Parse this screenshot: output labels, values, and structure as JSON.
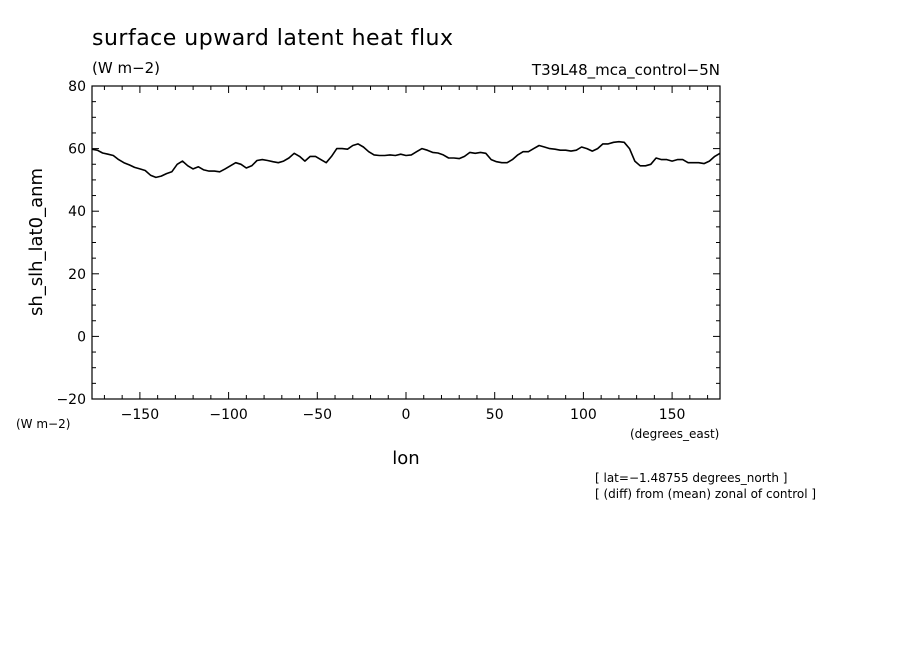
{
  "header": {
    "title": "surface upward latent heat flux",
    "units": "(W m−2)",
    "run_label": "T39L48_mca_control−5N"
  },
  "footer_notes": [
    "[ lat=−1.48755 degrees_north ]",
    "[ (diff) from (mean) zonal of control ]"
  ],
  "chart_data": {
    "type": "line",
    "title": "surface upward latent heat flux",
    "xlabel": "lon",
    "xunits": "(degrees_east)",
    "ylabel": "sh_slh_lat0_anm",
    "yunits": "(W m−2)",
    "xlim": [
      -177,
      177
    ],
    "ylim": [
      -20,
      80
    ],
    "xticks": [
      -150,
      -100,
      -50,
      0,
      50,
      100,
      150
    ],
    "xtick_labels": [
      "−150",
      "−100",
      "−50",
      "0",
      "50",
      "100",
      "150"
    ],
    "yticks": [
      -20,
      0,
      20,
      40,
      60,
      80
    ],
    "ytick_labels": [
      "−20",
      "0",
      "20",
      "40",
      "60",
      "80"
    ],
    "grid": false,
    "series": [
      {
        "color": "#000000",
        "x": [
          -177,
          -174,
          -171,
          -168,
          -165,
          -162,
          -159,
          -156,
          -153,
          -150,
          -147,
          -144,
          -141,
          -138,
          -135,
          -132,
          -129,
          -126,
          -123,
          -120,
          -117,
          -114,
          -111,
          -108,
          -105,
          -102,
          -99,
          -96,
          -93,
          -90,
          -87,
          -84,
          -81,
          -78,
          -75,
          -72,
          -69,
          -66,
          -63,
          -60,
          -57,
          -54,
          -51,
          -48,
          -45,
          -42,
          -39,
          -36,
          -33,
          -30,
          -27,
          -24,
          -21,
          -18,
          -15,
          -12,
          -9,
          -6,
          -3,
          0,
          3,
          6,
          9,
          12,
          15,
          18,
          21,
          24,
          27,
          30,
          33,
          36,
          39,
          42,
          45,
          48,
          51,
          54,
          57,
          60,
          63,
          66,
          69,
          72,
          75,
          78,
          81,
          84,
          87,
          90,
          93,
          96,
          99,
          102,
          105,
          108,
          111,
          114,
          117,
          120,
          123,
          126,
          129,
          132,
          135,
          138,
          141,
          144,
          147,
          150,
          153,
          156,
          159,
          162,
          165,
          168,
          171,
          174,
          177
        ],
        "y": [
          59.8,
          59.5,
          58.6,
          58.2,
          57.8,
          56.5,
          55.5,
          54.8,
          54.0,
          53.5,
          53.0,
          51.5,
          50.8,
          51.2,
          52.0,
          52.6,
          55.0,
          56.0,
          54.5,
          53.5,
          54.2,
          53.2,
          52.8,
          52.8,
          52.6,
          53.5,
          54.5,
          55.5,
          55.0,
          53.8,
          54.5,
          56.2,
          56.5,
          56.2,
          55.8,
          55.5,
          56.0,
          57.0,
          58.5,
          57.5,
          56.0,
          57.5,
          57.5,
          56.5,
          55.5,
          57.5,
          60.0,
          60.0,
          59.8,
          61.0,
          61.5,
          60.5,
          59.0,
          58.0,
          57.8,
          57.8,
          58.0,
          57.8,
          58.2,
          57.8,
          58.0,
          59.0,
          60.0,
          59.5,
          58.8,
          58.6,
          58.0,
          57.0,
          57.0,
          56.8,
          57.5,
          58.8,
          58.5,
          58.8,
          58.5,
          56.5,
          55.8,
          55.5,
          55.5,
          56.5,
          58.0,
          59.0,
          59.0,
          60.0,
          61.0,
          60.5,
          60.0,
          59.8,
          59.5,
          59.5,
          59.2,
          59.5,
          60.5,
          60.0,
          59.2,
          60.0,
          61.5,
          61.5,
          62.0,
          62.2,
          62.0,
          60.0,
          56.0,
          54.5,
          54.5,
          55.0,
          57.0,
          56.5,
          56.5,
          56.0,
          56.5,
          56.5,
          55.5,
          55.5,
          55.5,
          55.2,
          56.0,
          57.5,
          58.5
        ]
      }
    ]
  }
}
